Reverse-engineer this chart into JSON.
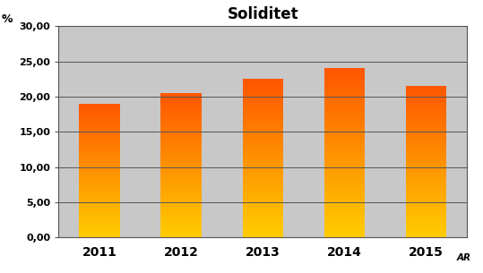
{
  "title": "Soliditet",
  "ylabel": "%",
  "xlabel_suffix": "AR",
  "categories": [
    "2011",
    "2012",
    "2013",
    "2014",
    "2015"
  ],
  "values": [
    19.0,
    20.5,
    22.5,
    24.0,
    21.5
  ],
  "ylim": [
    0,
    30
  ],
  "yticks": [
    0.0,
    5.0,
    10.0,
    15.0,
    20.0,
    25.0,
    30.0
  ],
  "ytick_labels": [
    "0,00",
    "5,00",
    "10,00",
    "15,00",
    "20,00",
    "25,00",
    "30,00"
  ],
  "bar_color_top": "#FF7700",
  "bar_color_bottom": "#FFCC00",
  "plot_bg_color": "#C8C8C8",
  "fig_bg_color": "#FFFFFF",
  "title_fontsize": 12,
  "tick_fontsize": 8,
  "bar_width": 0.5
}
